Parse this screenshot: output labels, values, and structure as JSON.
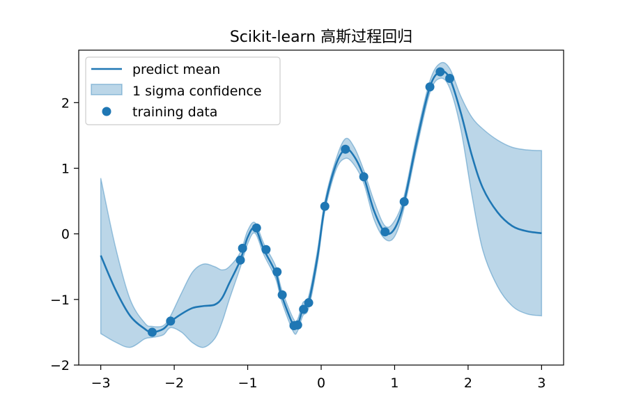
{
  "chart_data": {
    "type": "line",
    "title": "Scikit-learn 高斯过程回归",
    "xlabel": "",
    "ylabel": "",
    "xlim": [
      -3.3,
      3.3
    ],
    "ylim": [
      -2.0,
      2.8
    ],
    "xticks": [
      -3,
      -2,
      -1,
      0,
      1,
      2,
      3
    ],
    "xtick_labels": [
      "−3",
      "−2",
      "−1",
      "0",
      "1",
      "2",
      "3"
    ],
    "yticks": [
      -2,
      -1,
      0,
      1,
      2
    ],
    "ytick_labels": [
      "−2",
      "−1",
      "0",
      "1",
      "2"
    ],
    "grid": false,
    "legend_position": "top-left",
    "colors": {
      "series": "#1f77b4",
      "band_fill": "#1f77b4",
      "axes": "#000000"
    },
    "series": [
      {
        "name": "predict mean",
        "kind": "line",
        "x": [
          -3.0,
          -2.8,
          -2.6,
          -2.4,
          -2.3,
          -2.15,
          -2.05,
          -1.9,
          -1.75,
          -1.6,
          -1.45,
          -1.35,
          -1.25,
          -1.1,
          -1.0,
          -0.9,
          -0.78,
          -0.62,
          -0.54,
          -0.38,
          -0.32,
          -0.25,
          -0.17,
          -0.05,
          0.05,
          0.2,
          0.33,
          0.45,
          0.58,
          0.72,
          0.87,
          1.0,
          1.13,
          1.3,
          1.48,
          1.62,
          1.75,
          1.9,
          2.05,
          2.2,
          2.4,
          2.6,
          2.8,
          3.0
        ],
        "y": [
          -0.33,
          -0.85,
          -1.25,
          -1.45,
          -1.5,
          -1.45,
          -1.34,
          -1.22,
          -1.13,
          -1.1,
          -1.08,
          -0.98,
          -0.75,
          -0.4,
          -0.05,
          0.09,
          -0.24,
          -0.59,
          -0.93,
          -1.39,
          -1.39,
          -1.15,
          -1.04,
          -0.35,
          0.42,
          1.05,
          1.29,
          1.18,
          0.87,
          0.35,
          0.02,
          0.08,
          0.49,
          1.4,
          2.24,
          2.47,
          2.37,
          1.85,
          1.2,
          0.7,
          0.33,
          0.12,
          0.04,
          0.01
        ]
      },
      {
        "name": "1 sigma confidence",
        "kind": "band",
        "x": [
          -3.0,
          -2.8,
          -2.6,
          -2.4,
          -2.3,
          -2.15,
          -2.05,
          -1.9,
          -1.75,
          -1.6,
          -1.45,
          -1.35,
          -1.25,
          -1.1,
          -1.0,
          -0.9,
          -0.78,
          -0.62,
          -0.54,
          -0.38,
          -0.32,
          -0.25,
          -0.17,
          -0.05,
          0.05,
          0.2,
          0.33,
          0.45,
          0.58,
          0.72,
          0.87,
          1.0,
          1.13,
          1.3,
          1.48,
          1.62,
          1.75,
          1.9,
          2.05,
          2.2,
          2.4,
          2.6,
          2.8,
          3.0
        ],
        "upper": [
          0.85,
          -0.2,
          -1.0,
          -1.36,
          -1.41,
          -1.4,
          -1.25,
          -0.9,
          -0.58,
          -0.46,
          -0.5,
          -0.55,
          -0.5,
          -0.28,
          0.05,
          0.17,
          -0.15,
          -0.49,
          -0.84,
          -1.29,
          -1.3,
          -1.05,
          -0.95,
          -0.25,
          0.5,
          1.13,
          1.45,
          1.32,
          0.97,
          0.5,
          0.12,
          0.2,
          0.58,
          1.5,
          2.33,
          2.6,
          2.52,
          2.1,
          1.78,
          1.6,
          1.43,
          1.32,
          1.28,
          1.27
        ]
      },
      {
        "name": "1 sigma confidence lower",
        "kind": "band-lower",
        "lower": [
          -1.52,
          -1.65,
          -1.73,
          -1.6,
          -1.58,
          -1.54,
          -1.43,
          -1.5,
          -1.66,
          -1.73,
          -1.6,
          -1.35,
          -1.0,
          -0.51,
          -0.15,
          0.01,
          -0.32,
          -0.68,
          -1.02,
          -1.49,
          -1.48,
          -1.25,
          -1.13,
          -0.45,
          0.34,
          0.97,
          1.15,
          1.05,
          0.77,
          0.22,
          -0.08,
          -0.04,
          0.4,
          1.3,
          2.15,
          2.37,
          2.22,
          1.6,
          0.6,
          -0.25,
          -0.8,
          -1.1,
          -1.22,
          -1.25
        ]
      },
      {
        "name": "training data",
        "kind": "scatter",
        "x": [
          -2.3,
          -2.05,
          -1.1,
          -1.07,
          -0.88,
          -0.75,
          -0.6,
          -0.53,
          -0.37,
          -0.32,
          -0.24,
          -0.17,
          0.05,
          0.33,
          0.58,
          0.87,
          1.13,
          1.48,
          1.62,
          1.75
        ],
        "y": [
          -1.5,
          -1.33,
          -0.4,
          -0.22,
          0.09,
          -0.24,
          -0.58,
          -0.93,
          -1.4,
          -1.39,
          -1.15,
          -1.05,
          0.42,
          1.29,
          0.87,
          0.03,
          0.49,
          2.24,
          2.47,
          2.37
        ]
      }
    ]
  }
}
